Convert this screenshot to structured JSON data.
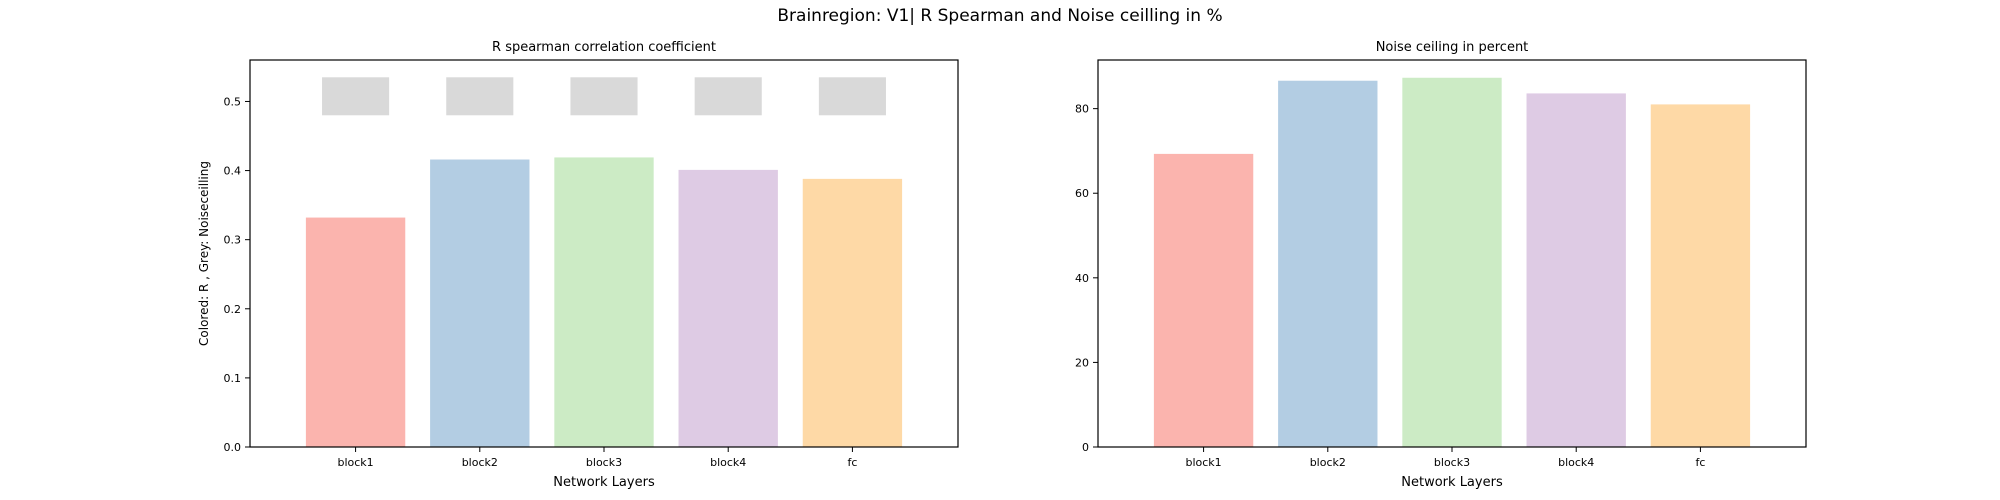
{
  "figure": {
    "suptitle": "Brainregion: V1| R Spearman and Noise ceilling in %"
  },
  "colors": {
    "bars": [
      "#fbb4ae",
      "#b3cde3",
      "#ccebc5",
      "#decbe4",
      "#fed9a6"
    ],
    "ceiling_marker": "#d9d9d9",
    "axes": "#000000"
  },
  "chart_data": [
    {
      "type": "bar",
      "title": "R spearman correlation coefficient",
      "xlabel": "Network Layers",
      "ylabel": "Colored: R , Grey: Noiseceilling",
      "categories": [
        "block1",
        "block2",
        "block3",
        "block4",
        "fc"
      ],
      "series": [
        {
          "values": [
            0.332,
            0.416,
            0.419,
            0.401,
            0.388
          ]
        }
      ],
      "noise_ceiling": {
        "lower": [
          0.48,
          0.48,
          0.48,
          0.48,
          0.48
        ],
        "upper": [
          0.535,
          0.535,
          0.535,
          0.535,
          0.535
        ]
      },
      "ylim": [
        0,
        0.56
      ],
      "yticks": [
        0.0,
        0.1,
        0.2,
        0.3,
        0.4,
        0.5
      ],
      "ytick_labels": [
        "0.0",
        "0.1",
        "0.2",
        "0.3",
        "0.4",
        "0.5"
      ],
      "grid": false
    },
    {
      "type": "bar",
      "title": "Noise ceiling in percent",
      "xlabel": "Network Layers",
      "ylabel": "",
      "categories": [
        "block1",
        "block2",
        "block3",
        "block4",
        "fc"
      ],
      "series": [
        {
          "values": [
            69.3,
            86.6,
            87.3,
            83.6,
            81.0
          ]
        }
      ],
      "ylim": [
        0,
        91.5
      ],
      "yticks": [
        0,
        20,
        40,
        60,
        80
      ],
      "ytick_labels": [
        "0",
        "20",
        "40",
        "60",
        "80"
      ],
      "grid": false
    }
  ]
}
